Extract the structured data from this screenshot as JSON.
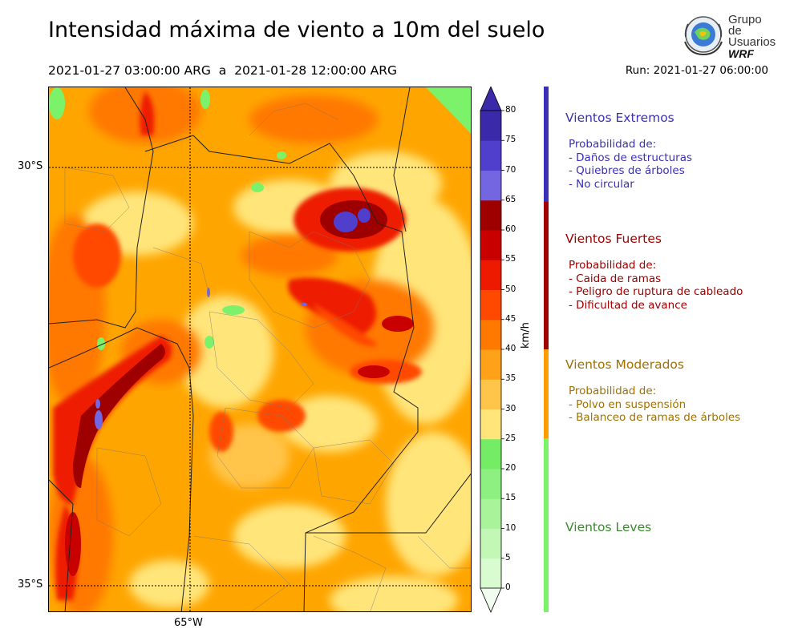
{
  "title": "Intensidad máxima de viento a 10m del suelo",
  "period": "2021-01-27 03:00:00 ARG  a  2021-01-28 12:00:00 ARG",
  "run": "Run: 2021-01-27 06:00:00",
  "logo": {
    "line1": "Grupo de",
    "line2": "Usuarios",
    "line3": "WRF"
  },
  "map": {
    "lat_labels": [
      "30°S",
      "35°S"
    ],
    "lon_labels": [
      "65°W"
    ],
    "colors": {
      "light_green": "#c9f7c0",
      "green": "#7cf26b",
      "yellow": "#ffe57a",
      "orange_light": "#ffbf3c",
      "orange": "#ffa500",
      "orange_dark": "#ff7a00",
      "red": "#ff3d00",
      "red_dark": "#d40e00",
      "red_deep": "#9e0000",
      "violet_light": "#7466e0",
      "violet": "#4a3ac8",
      "violet_dark": "#3a2aaa"
    }
  },
  "colorbar": {
    "unit": "km/h",
    "ticks": [
      "0",
      "5",
      "10",
      "15",
      "20",
      "25",
      "30",
      "35",
      "40",
      "45",
      "50",
      "55",
      "60",
      "65",
      "70",
      "75",
      "80"
    ],
    "colors": [
      "#f1fdee",
      "#d9fbd0",
      "#c2f7b6",
      "#a9f49b",
      "#8df080",
      "#74ec65",
      "#ffe57a",
      "#ffc44a",
      "#ffa21a",
      "#ff7800",
      "#ff4800",
      "#ee1a00",
      "#c80000",
      "#9e0000",
      "#7466e0",
      "#4f3fcc",
      "#3a2aaa"
    ]
  },
  "categories": [
    {
      "name": "Vientos Extremos",
      "color": "#3b30b5",
      "text_color": "#3b30b5",
      "desc": "Probabilidad de:\n- Daños de estructuras\n- Quiebres de árboles\n- No circular"
    },
    {
      "name": "Vientos Fuertes",
      "color": "#a00000",
      "text_color": "#a00000",
      "desc": "Probabilidad de:\n- Caida de ramas\n- Peligro de ruptura de cableado\n- Dificultad de avance"
    },
    {
      "name": "Vientos Moderados",
      "color": "#ff9d00",
      "text_color": "#a07000",
      "desc": "Probabilidad de:\n- Polvo en suspensión\n- Balanceo de ramas de árboles"
    },
    {
      "name": "Vientos Leves",
      "color": "#7cf26b",
      "text_color": "#3a8a2e",
      "desc": ""
    }
  ]
}
